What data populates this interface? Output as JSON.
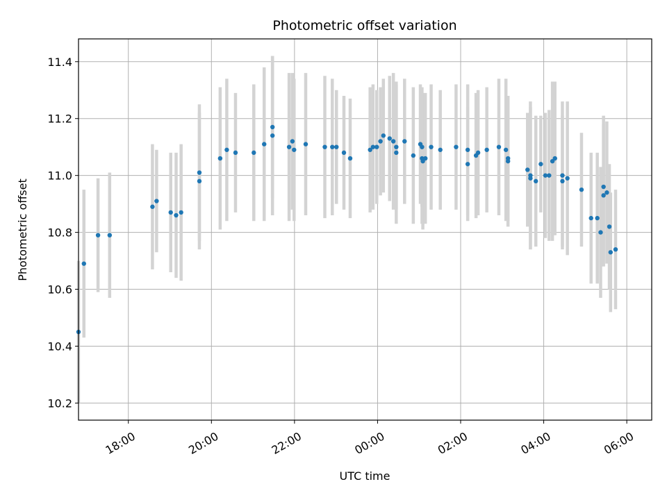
{
  "chart_data": {
    "type": "scatter",
    "title": "Photometric offset variation",
    "xlabel": "UTC time",
    "ylabel": "Photometric offset",
    "x_unit": "UTC time (hours, continuing past midnight)",
    "xlim": [
      16.8,
      30.6
    ],
    "ylim": [
      10.14,
      11.48
    ],
    "x_ticks": [
      18,
      20,
      22,
      24,
      26,
      28,
      30
    ],
    "x_tick_labels": [
      "18:00",
      "20:00",
      "22:00",
      "00:00",
      "02:00",
      "04:00",
      "06:00"
    ],
    "y_ticks": [
      10.2,
      10.4,
      10.6,
      10.8,
      11.0,
      11.2,
      11.4
    ],
    "y_tick_labels": [
      "10.2",
      "10.4",
      "10.6",
      "10.8",
      "11.0",
      "11.2",
      "11.4"
    ],
    "grid": true,
    "colors": {
      "point": "#1f77b4",
      "errorbar": "#d3d3d3",
      "grid": "#b0b0b0"
    },
    "series": [
      {
        "x": [
          16.8,
          16.93,
          17.27,
          17.55,
          18.58,
          18.68,
          19.02,
          19.15,
          19.27,
          19.71,
          19.71,
          20.21,
          20.37,
          20.58,
          21.02,
          21.27,
          21.47,
          21.47,
          21.87,
          21.95,
          21.99,
          22.27,
          22.73,
          22.91,
          23.01,
          23.19,
          23.34,
          23.82,
          23.89,
          23.98,
          24.07,
          24.14,
          24.29,
          24.38,
          24.45,
          24.45,
          24.65,
          24.86,
          25.03,
          25.07,
          25.07,
          25.09,
          25.15,
          25.29,
          25.51,
          25.89,
          26.17,
          26.17,
          26.37,
          26.42,
          26.63,
          26.92,
          27.09,
          27.14,
          27.14,
          27.61,
          27.68,
          27.68,
          27.81,
          27.93,
          28.04,
          28.13,
          28.21,
          28.27,
          28.45,
          28.45,
          28.57,
          28.91,
          29.14,
          29.29,
          29.37,
          29.44,
          29.44,
          29.52,
          29.58,
          29.61,
          29.73
        ],
        "y": [
          10.45,
          10.69,
          10.79,
          10.79,
          10.89,
          10.91,
          10.87,
          10.86,
          10.87,
          11.01,
          10.98,
          11.06,
          11.09,
          11.08,
          11.08,
          11.11,
          11.14,
          11.17,
          11.1,
          11.12,
          11.09,
          11.11,
          11.1,
          11.1,
          11.1,
          11.08,
          11.06,
          11.09,
          11.1,
          11.1,
          11.12,
          11.14,
          11.13,
          11.12,
          11.1,
          11.08,
          11.12,
          11.07,
          11.11,
          11.1,
          11.06,
          11.05,
          11.06,
          11.1,
          11.09,
          11.1,
          11.09,
          11.04,
          11.07,
          11.08,
          11.09,
          11.1,
          11.09,
          11.05,
          11.06,
          11.02,
          11.0,
          10.99,
          10.98,
          11.04,
          11.0,
          11.0,
          11.05,
          11.06,
          10.98,
          11.0,
          10.99,
          10.95,
          10.85,
          10.85,
          10.8,
          10.93,
          10.96,
          10.94,
          10.82,
          10.73,
          10.74
        ],
        "err": [
          0.25,
          0.26,
          0.2,
          0.22,
          0.22,
          0.18,
          0.21,
          0.22,
          0.24,
          0.24,
          0.24,
          0.25,
          0.25,
          0.21,
          0.24,
          0.27,
          0.28,
          0.25,
          0.26,
          0.24,
          0.25,
          0.25,
          0.25,
          0.24,
          0.2,
          0.2,
          0.21,
          0.22,
          0.22,
          0.2,
          0.19,
          0.2,
          0.22,
          0.24,
          0.22,
          0.25,
          0.22,
          0.24,
          0.21,
          0.21,
          0.23,
          0.24,
          0.23,
          0.22,
          0.21,
          0.22,
          0.23,
          0.2,
          0.22,
          0.22,
          0.22,
          0.24,
          0.25,
          0.23,
          0.22,
          0.2,
          0.26,
          0.25,
          0.23,
          0.17,
          0.22,
          0.23,
          0.28,
          0.27,
          0.23,
          0.26,
          0.27,
          0.2,
          0.23,
          0.23,
          0.23,
          0.25,
          0.25,
          0.25,
          0.22,
          0.21,
          0.21
        ]
      }
    ]
  }
}
